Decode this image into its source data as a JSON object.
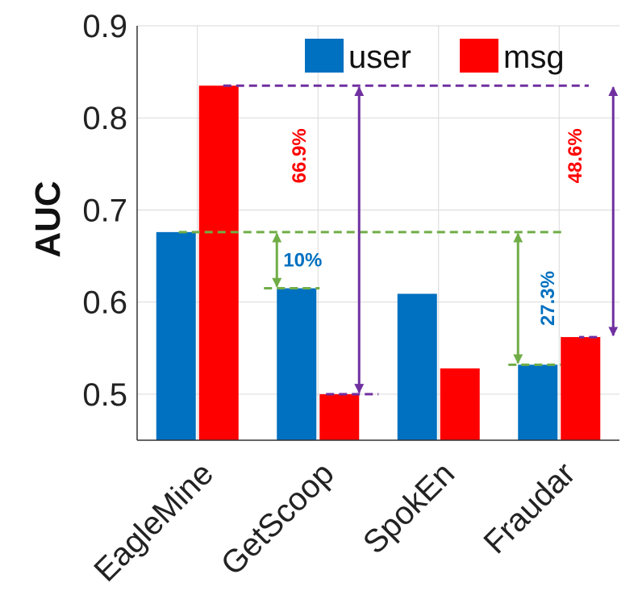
{
  "chart_data": {
    "type": "bar",
    "categories": [
      "EagleMine",
      "GetScoop",
      "SpokEn",
      "Fraudar"
    ],
    "series": [
      {
        "name": "user",
        "values": [
          0.676,
          0.615,
          0.609,
          0.532
        ],
        "color": "#0070C0"
      },
      {
        "name": "msg",
        "values": [
          0.835,
          0.5,
          0.528,
          0.562
        ],
        "color": "#FF0000"
      }
    ],
    "ylabel": "AUC",
    "xlabel": "",
    "title": "",
    "ylim": [
      0.45,
      0.9
    ],
    "yticks": [
      "0.5",
      "0.6",
      "0.7",
      "0.8",
      "0.9"
    ],
    "grid": true,
    "legend_position": "top-right",
    "annotations": [
      {
        "text": "10%",
        "from_value": 0.676,
        "to_value": 0.615,
        "color": "#0070C0",
        "arrow_color": "#70AD47"
      },
      {
        "text": "27.3%",
        "from_value": 0.676,
        "to_value": 0.532,
        "color": "#0070C0",
        "arrow_color": "#70AD47"
      },
      {
        "text": "66.9%",
        "from_value": 0.835,
        "to_value": 0.5,
        "color": "#FF0000",
        "arrow_color": "#7030A0"
      },
      {
        "text": "48.6%",
        "from_value": 0.835,
        "to_value": 0.562,
        "color": "#FF0000",
        "arrow_color": "#7030A0"
      }
    ]
  }
}
